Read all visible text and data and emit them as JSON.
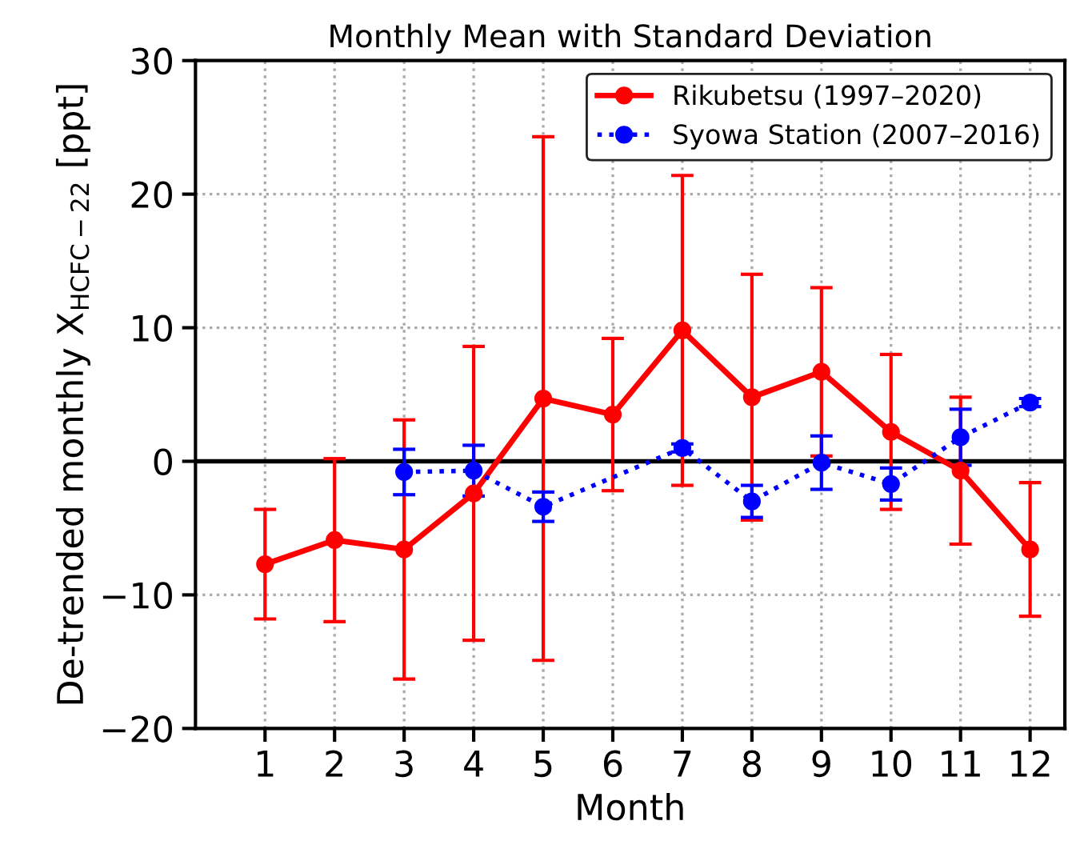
{
  "chart_data": {
    "type": "line",
    "title": "Monthly Mean with Standard Deviation",
    "xlabel": "Month",
    "ylabel": "De-trended monthly X$_{HCFC−22}$ [ppt]",
    "xlim": [
      0,
      12.5
    ],
    "xticks": [
      1,
      2,
      3,
      4,
      5,
      6,
      7,
      8,
      9,
      10,
      11,
      12
    ],
    "ylim": [
      -20,
      30
    ],
    "yticks": [
      -20,
      -10,
      0,
      10,
      20,
      30
    ],
    "grid": true,
    "legend": "top right",
    "marker": "circle",
    "ref_lines": [
      {
        "axis": "y",
        "value": 0,
        "color": "#000000",
        "line_style": "solid"
      }
    ],
    "series": [
      {
        "name": "Rikubetsu (1997–2020)",
        "color": "#ff0000",
        "line_style": "solid",
        "x": [
          1,
          2,
          3,
          4,
          5,
          6,
          7,
          8,
          9,
          10,
          11,
          12
        ],
        "values": [
          -7.7,
          -5.9,
          -6.6,
          -2.4,
          4.7,
          3.5,
          9.8,
          4.8,
          6.7,
          2.2,
          -0.7,
          -6.6
        ],
        "errors": [
          4.1,
          6.1,
          9.7,
          11,
          19.6,
          5.7,
          11.6,
          9.2,
          6.3,
          5.8,
          5.5,
          5.0
        ]
      },
      {
        "name": "Syowa Station (2007–2016)",
        "color": "#0000ff",
        "line_style": "dotted",
        "x": [
          3,
          4,
          5,
          7,
          8,
          9,
          10,
          11,
          12
        ],
        "values": [
          -0.8,
          -0.7,
          -3.4,
          1.0,
          -3.0,
          -0.1,
          -1.7,
          1.8,
          4.4
        ],
        "errors": [
          1.7,
          1.9,
          1.1,
          0.3,
          1.2,
          2.0,
          1.2,
          2.1,
          0.3
        ]
      }
    ]
  }
}
